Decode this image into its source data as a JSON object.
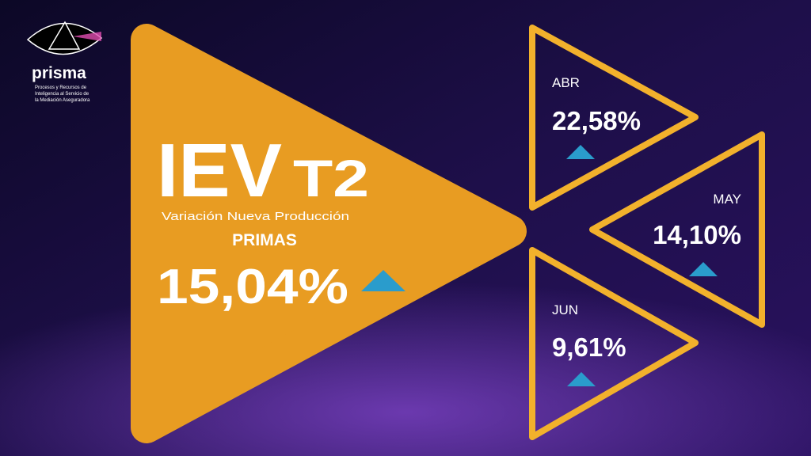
{
  "logo": {
    "name": "prisma",
    "tagline": [
      "Procesos y Recursos de",
      "Inteligencia al Servicio de",
      "la Mediación Aseguradora"
    ]
  },
  "main": {
    "title": "IEV",
    "period": "T2",
    "subtitle": "Variación Nueva Producción",
    "label": "PRIMAS",
    "value": "15,04%"
  },
  "months": [
    {
      "label": "ABR",
      "value": "22,58%"
    },
    {
      "label": "MAY",
      "value": "14,10%"
    },
    {
      "label": "JUN",
      "value": "9,61%"
    }
  ]
}
